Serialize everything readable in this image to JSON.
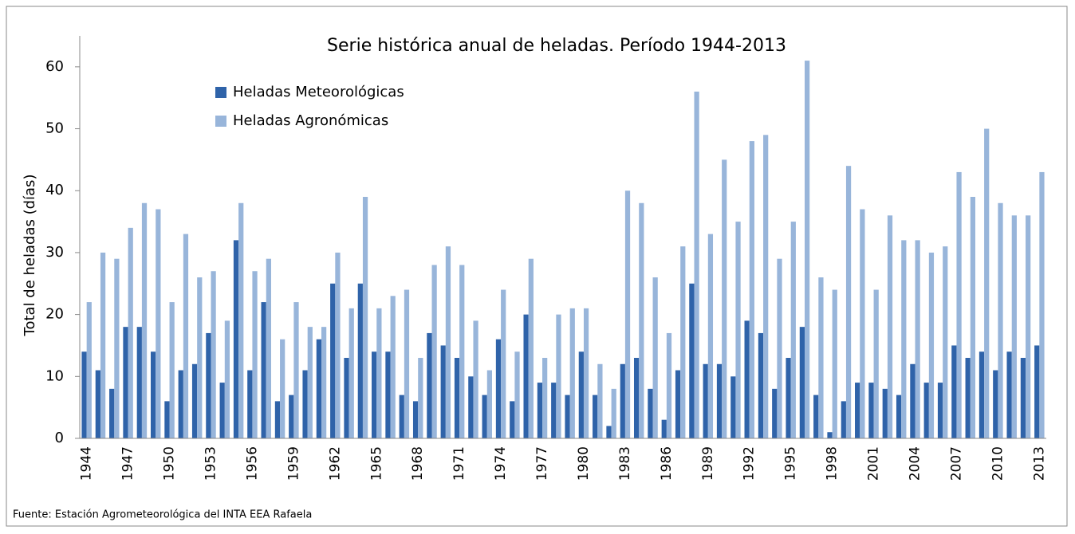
{
  "chart_data": {
    "type": "bar",
    "title": "Serie histórica anual de heladas. Período 1944-2013",
    "y_label": "Total de heladas (días)",
    "source": "Fuente: Estación Agrometeorológica del INTA EEA Rafaela",
    "legend_position": "upper left",
    "categories": [
      "1944",
      null,
      null,
      "1947",
      null,
      null,
      "1950",
      null,
      null,
      "1953",
      null,
      null,
      "1956",
      null,
      null,
      "1959",
      null,
      null,
      "1962",
      null,
      null,
      "1965",
      null,
      null,
      "1968",
      null,
      null,
      "1971",
      null,
      null,
      "1974",
      null,
      null,
      "1977",
      null,
      null,
      "1980",
      null,
      null,
      "1983",
      null,
      null,
      "1986",
      null,
      null,
      "1989",
      null,
      null,
      "1992",
      null,
      null,
      "1995",
      null,
      null,
      "1998",
      null,
      null,
      "2001",
      null,
      null,
      "2004",
      null,
      null,
      "2007",
      null,
      null,
      "2010",
      null,
      null,
      "2013"
    ],
    "series": [
      {
        "name": "Heladas Meteorológicas",
        "color": "#2f63a9",
        "values": [
          14,
          11,
          8,
          18,
          18,
          14,
          6,
          11,
          12,
          17,
          9,
          32,
          11,
          22,
          6,
          7,
          11,
          16,
          25,
          13,
          25,
          14,
          14,
          7,
          6,
          17,
          15,
          13,
          10,
          7,
          16,
          6,
          20,
          9,
          9,
          7,
          14,
          7,
          2,
          12,
          13,
          8,
          3,
          11,
          25,
          12,
          12,
          10,
          19,
          17,
          8,
          13,
          18,
          7,
          1,
          6,
          9,
          9,
          8,
          7,
          12,
          9,
          9,
          15,
          13,
          14,
          11,
          14,
          13,
          15
        ]
      },
      {
        "name": "Heladas Agronómicas",
        "color": "#98b5da",
        "values": [
          22,
          30,
          29,
          34,
          38,
          37,
          22,
          33,
          26,
          27,
          19,
          38,
          27,
          29,
          16,
          22,
          18,
          18,
          30,
          21,
          39,
          21,
          23,
          24,
          13,
          28,
          31,
          28,
          19,
          11,
          24,
          14,
          29,
          13,
          20,
          21,
          21,
          12,
          8,
          40,
          38,
          26,
          17,
          31,
          56,
          33,
          45,
          35,
          48,
          49,
          29,
          35,
          61,
          26,
          24,
          44,
          37,
          24,
          36,
          32,
          32,
          30,
          31,
          43,
          39,
          50,
          38,
          36,
          36,
          43
        ]
      }
    ],
    "ylim": [
      0,
      65
    ],
    "yticks": [
      0,
      10,
      20,
      30,
      40,
      50,
      60
    ],
    "grid": false
  }
}
